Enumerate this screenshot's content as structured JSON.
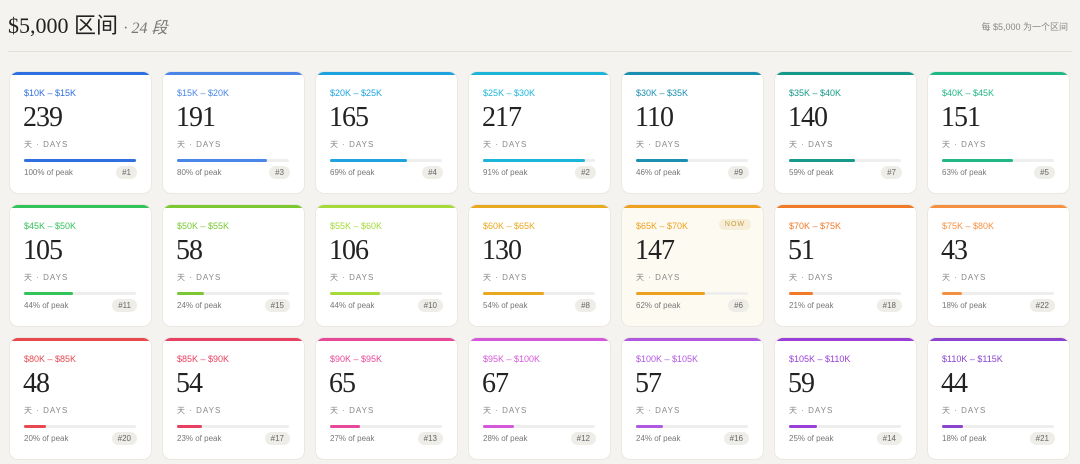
{
  "header": {
    "title": "$5,000 区间",
    "subtitle": "· 24 段",
    "note": "每 $5,000 为一个区间"
  },
  "unit_label": "天 · DAYS",
  "cards": [
    {
      "range": "$10K – $15K",
      "days": 239,
      "peak": "100% of peak",
      "rank": "#1",
      "color": "#2f6fe0"
    },
    {
      "range": "$15K – $20K",
      "days": 191,
      "peak": "80% of peak",
      "rank": "#3",
      "color": "#4a86e8"
    },
    {
      "range": "$20K – $25K",
      "days": 165,
      "peak": "69% of peak",
      "rank": "#4",
      "color": "#1ea3e0"
    },
    {
      "range": "$25K – $30K",
      "days": 217,
      "peak": "91% of peak",
      "rank": "#2",
      "color": "#1cb5d8"
    },
    {
      "range": "$30K – $35K",
      "days": 110,
      "peak": "46% of peak",
      "rank": "#9",
      "color": "#1a8fb0"
    },
    {
      "range": "$35K – $40K",
      "days": 140,
      "peak": "59% of peak",
      "rank": "#7",
      "color": "#16998a"
    },
    {
      "range": "$40K – $45K",
      "days": 151,
      "peak": "63% of peak",
      "rank": "#5",
      "color": "#20b884"
    },
    {
      "range": "$45K – $50K",
      "days": 105,
      "peak": "44% of peak",
      "rank": "#11",
      "color": "#34c25a"
    },
    {
      "range": "$50K – $55K",
      "days": 58,
      "peak": "24% of peak",
      "rank": "#15",
      "color": "#7cc832"
    },
    {
      "range": "$55K – $60K",
      "days": 106,
      "peak": "44% of peak",
      "rank": "#10",
      "color": "#a6d93a"
    },
    {
      "range": "$60K – $65K",
      "days": 130,
      "peak": "54% of peak",
      "rank": "#8",
      "color": "#e8a820"
    },
    {
      "range": "$65K – $70K",
      "days": 147,
      "peak": "62% of peak",
      "rank": "#6",
      "color": "#eea020",
      "badge": "NOW"
    },
    {
      "range": "$70K – $75K",
      "days": 51,
      "peak": "21% of peak",
      "rank": "#18",
      "color": "#f07a28"
    },
    {
      "range": "$75K – $80K",
      "days": 43,
      "peak": "18% of peak",
      "rank": "#22",
      "color": "#f59040"
    },
    {
      "range": "$80K – $85K",
      "days": 48,
      "peak": "20% of peak",
      "rank": "#20",
      "color": "#e84850"
    },
    {
      "range": "$85K – $90K",
      "days": 54,
      "peak": "23% of peak",
      "rank": "#17",
      "color": "#e84060"
    },
    {
      "range": "$90K – $95K",
      "days": 65,
      "peak": "27% of peak",
      "rank": "#13",
      "color": "#e84898"
    },
    {
      "range": "$95K – $100K",
      "days": 67,
      "peak": "28% of peak",
      "rank": "#12",
      "color": "#d458d8"
    },
    {
      "range": "$100K – $105K",
      "days": 57,
      "peak": "24% of peak",
      "rank": "#16",
      "color": "#b058e0"
    },
    {
      "range": "$105K – $110K",
      "days": 59,
      "peak": "25% of peak",
      "rank": "#14",
      "color": "#9a40d8"
    },
    {
      "range": "$110K – $115K",
      "days": 44,
      "peak": "18% of peak",
      "rank": "#21",
      "color": "#8a44d0"
    }
  ]
}
